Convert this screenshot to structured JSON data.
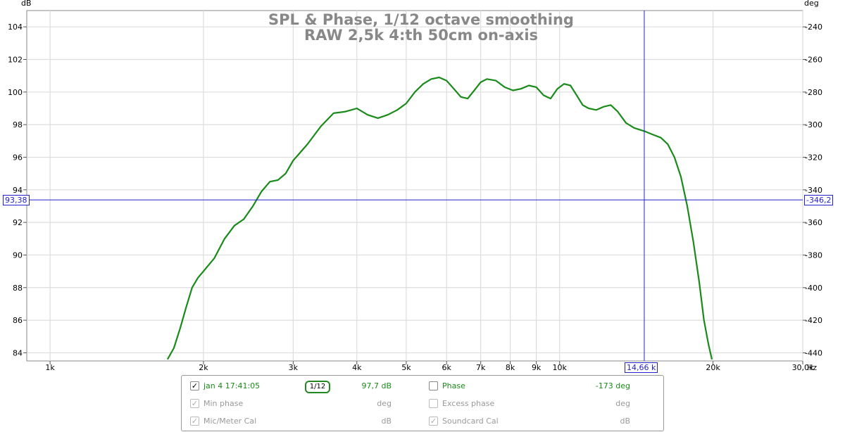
{
  "chart_data": {
    "type": "line",
    "title_line1": "SPL & Phase, 1/12 octave smoothing",
    "title_line2": "RAW 2,5k 4:th 50cm on-axis",
    "ylabel_left": "dB",
    "ylabel_right": "deg",
    "xlabel": "Hz",
    "x_scale": "log",
    "xlim": [
      900,
      30000
    ],
    "ylim_left": [
      83.5,
      105
    ],
    "ylim_right": [
      -445,
      -230
    ],
    "x_ticks": [
      {
        "v": 1000,
        "label": "1k"
      },
      {
        "v": 2000,
        "label": "2k"
      },
      {
        "v": 3000,
        "label": "3k"
      },
      {
        "v": 4000,
        "label": "4k"
      },
      {
        "v": 5000,
        "label": "5k"
      },
      {
        "v": 6000,
        "label": "6k"
      },
      {
        "v": 7000,
        "label": "7k"
      },
      {
        "v": 8000,
        "label": "8k"
      },
      {
        "v": 9000,
        "label": "9k"
      },
      {
        "v": 10000,
        "label": "10k"
      },
      {
        "v": 20000,
        "label": "20k"
      },
      {
        "v": 30000,
        "label": "30,0k"
      }
    ],
    "y_ticks_left": [
      84,
      86,
      88,
      90,
      92,
      94,
      96,
      98,
      100,
      102,
      104
    ],
    "y_ticks_right": [
      -440,
      -420,
      -400,
      -380,
      -360,
      -340,
      -320,
      -300,
      -280,
      -260,
      -240
    ],
    "grid": true,
    "series": [
      {
        "color": "#1a8a1a",
        "x": [
          1700,
          1750,
          1800,
          1850,
          1900,
          1950,
          2000,
          2100,
          2200,
          2300,
          2400,
          2500,
          2600,
          2700,
          2800,
          2900,
          3000,
          3200,
          3400,
          3600,
          3800,
          4000,
          4200,
          4400,
          4600,
          4800,
          5000,
          5200,
          5400,
          5600,
          5800,
          6000,
          6200,
          6400,
          6600,
          6800,
          7000,
          7200,
          7500,
          7800,
          8100,
          8400,
          8700,
          9000,
          9300,
          9600,
          9900,
          10200,
          10500,
          10800,
          11100,
          11400,
          11800,
          12200,
          12600,
          13000,
          13500,
          14000,
          14660,
          15200,
          15800,
          16300,
          16800,
          17300,
          17800,
          18300,
          18800,
          19200,
          19600,
          19900
        ],
        "y": [
          83.6,
          84.3,
          85.5,
          86.8,
          88.0,
          88.6,
          89.0,
          89.8,
          91.0,
          91.8,
          92.2,
          93.0,
          93.9,
          94.5,
          94.6,
          95.0,
          95.8,
          96.8,
          97.9,
          98.7,
          98.8,
          99.0,
          98.6,
          98.4,
          98.6,
          98.9,
          99.3,
          100.0,
          100.5,
          100.8,
          100.9,
          100.7,
          100.2,
          99.7,
          99.6,
          100.1,
          100.6,
          100.8,
          100.7,
          100.3,
          100.1,
          100.2,
          100.4,
          100.3,
          99.8,
          99.6,
          100.2,
          100.5,
          100.4,
          99.8,
          99.2,
          99.0,
          98.9,
          99.1,
          99.2,
          98.8,
          98.1,
          97.8,
          97.6,
          97.4,
          97.2,
          96.8,
          96.0,
          94.8,
          93.0,
          90.8,
          88.3,
          86.0,
          84.5,
          83.6
        ]
      }
    ],
    "cursor": {
      "x": 14660,
      "y": 93.38,
      "x_label": "14,66 k",
      "y_label_left": "93,38",
      "y_label_right": "-346,2"
    }
  },
  "legend": {
    "row1": {
      "spl_label": "jan 4 17:41:05",
      "smoothing": "1/12",
      "spl_value": "97,7 dB",
      "phase_label": "Phase",
      "phase_value": "-173 deg",
      "spl_checked": true,
      "phase_checked": false
    },
    "row2": {
      "min_phase_label": "Min phase",
      "min_phase_unit": "deg",
      "excess_phase_label": "Excess phase",
      "excess_phase_unit": "deg",
      "min_phase_checked": true,
      "excess_phase_checked": false
    },
    "row3": {
      "mic_cal_label": "Mic/Meter Cal",
      "mic_cal_unit": "dB",
      "soundcard_cal_label": "Soundcard Cal",
      "soundcard_cal_unit": "dB",
      "mic_cal_checked": true,
      "soundcard_cal_checked": true
    },
    "colors": {
      "active_green": "#1a8a1a",
      "muted": "#999999"
    }
  }
}
